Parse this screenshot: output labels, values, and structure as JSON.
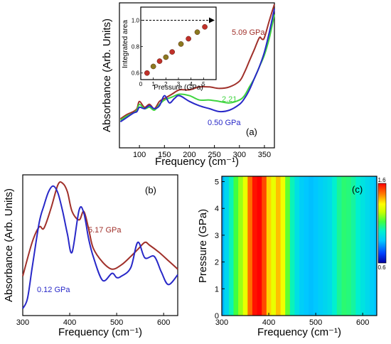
{
  "colors": {
    "red": "#a0302a",
    "green": "#3fd43f",
    "blue": "#2828c8",
    "black": "#000000"
  },
  "chart_data": [
    {
      "id": "a",
      "type": "line",
      "panel_label": "(a)",
      "xlabel": "Frequency (cm⁻¹)",
      "ylabel": "Absorbance (Arb. Units)",
      "xlim": [
        60,
        370
      ],
      "ylim": [
        0,
        1
      ],
      "x_ticks": [
        "100",
        "150",
        "200",
        "250",
        "300",
        "350"
      ],
      "series": [
        {
          "name": "5.09 GPa",
          "color": "#a0302a",
          "x": [
            62,
            75,
            88,
            95,
            100,
            110,
            120,
            130,
            140,
            150,
            165,
            180,
            200,
            220,
            240,
            260,
            280,
            300,
            310,
            320,
            330,
            340,
            345,
            350,
            360,
            370
          ],
          "y": [
            0.2,
            0.23,
            0.25,
            0.27,
            0.32,
            0.28,
            0.3,
            0.27,
            0.32,
            0.34,
            0.37,
            0.4,
            0.4,
            0.42,
            0.42,
            0.41,
            0.42,
            0.46,
            0.52,
            0.6,
            0.68,
            0.76,
            0.75,
            0.76,
            0.88,
            0.99
          ]
        },
        {
          "name": "2.21",
          "color": "#3fd43f",
          "x": [
            62,
            75,
            88,
            95,
            100,
            110,
            120,
            130,
            140,
            150,
            165,
            180,
            200,
            220,
            240,
            260,
            280,
            300,
            310,
            320,
            330,
            340,
            350,
            360,
            370
          ],
          "y": [
            0.19,
            0.22,
            0.24,
            0.26,
            0.3,
            0.27,
            0.28,
            0.26,
            0.3,
            0.33,
            0.35,
            0.37,
            0.36,
            0.33,
            0.33,
            0.32,
            0.31,
            0.33,
            0.36,
            0.42,
            0.48,
            0.56,
            0.64,
            0.76,
            0.92
          ]
        },
        {
          "name": "0.50 GPa",
          "color": "#2828c8",
          "x": [
            62,
            75,
            88,
            95,
            100,
            110,
            120,
            130,
            140,
            150,
            160,
            170,
            180,
            200,
            220,
            240,
            260,
            280,
            300,
            310,
            320,
            330,
            340,
            350,
            360,
            370
          ],
          "y": [
            0.18,
            0.21,
            0.24,
            0.25,
            0.28,
            0.27,
            0.29,
            0.27,
            0.29,
            0.36,
            0.31,
            0.34,
            0.36,
            0.32,
            0.29,
            0.27,
            0.25,
            0.26,
            0.3,
            0.34,
            0.4,
            0.48,
            0.56,
            0.66,
            0.8,
            0.96
          ]
        }
      ],
      "inset": {
        "type": "scatter",
        "xlabel": "Pressure (GPa)",
        "ylabel": "Integrated area",
        "xlim": [
          0,
          6
        ],
        "ylim": [
          0.55,
          1.1
        ],
        "x_ticks": [
          "0",
          "1",
          "2",
          "3",
          "4",
          "5"
        ],
        "y_ticks": [
          "0.6",
          "0.8",
          "1.0"
        ],
        "reference_line": 1.0,
        "x": [
          0.5,
          1.0,
          1.5,
          2.0,
          2.5,
          3.2,
          3.8,
          4.5,
          5.1
        ],
        "y": [
          0.6,
          0.65,
          0.69,
          0.72,
          0.76,
          0.82,
          0.86,
          0.91,
          0.95
        ]
      }
    },
    {
      "id": "b",
      "type": "line",
      "panel_label": "(b)",
      "xlabel": "Frequency (cm⁻¹)",
      "ylabel": "Absorbance (Arb. Units)",
      "xlim": [
        300,
        630
      ],
      "ylim": [
        0,
        1
      ],
      "x_ticks": [
        "300",
        "400",
        "500",
        "600"
      ],
      "series": [
        {
          "name": "5.17 GPa",
          "color": "#a0302a",
          "x": [
            300,
            320,
            335,
            345,
            360,
            375,
            385,
            395,
            405,
            420,
            430,
            440,
            450,
            470,
            490,
            510,
            530,
            545,
            560,
            570,
            590,
            610,
            630
          ],
          "y": [
            0.28,
            0.52,
            0.63,
            0.62,
            0.76,
            0.93,
            0.94,
            0.88,
            0.74,
            0.68,
            0.74,
            0.62,
            0.48,
            0.38,
            0.33,
            0.36,
            0.42,
            0.47,
            0.52,
            0.5,
            0.45,
            0.39,
            0.33
          ]
        },
        {
          "name": "0.12 GPa",
          "color": "#2828c8",
          "x": [
            300,
            310,
            320,
            335,
            345,
            355,
            365,
            375,
            385,
            395,
            405,
            420,
            430,
            440,
            450,
            470,
            490,
            500,
            510,
            530,
            545,
            560,
            580,
            595,
            610,
            630
          ],
          "y": [
            0.05,
            0.12,
            0.34,
            0.66,
            0.78,
            0.88,
            0.92,
            0.87,
            0.74,
            0.58,
            0.45,
            0.75,
            0.73,
            0.55,
            0.42,
            0.25,
            0.3,
            0.27,
            0.28,
            0.34,
            0.52,
            0.41,
            0.42,
            0.31,
            0.22,
            0.29
          ]
        }
      ]
    },
    {
      "id": "c",
      "type": "heatmap",
      "panel_label": "(c)",
      "xlabel": "Frequency (cm⁻¹)",
      "ylabel": "Pressure (GPa)",
      "xlim": [
        300,
        630
      ],
      "ylim": [
        0,
        5.2
      ],
      "x_ticks": [
        "300",
        "400",
        "500",
        "600"
      ],
      "y_ticks": [
        "0",
        "1",
        "2",
        "3",
        "4",
        "5"
      ],
      "colorbar": {
        "min": 0.6,
        "max": 1.6,
        "min_label": "0.6",
        "max_label": "1.6"
      },
      "x": [
        300,
        310,
        320,
        330,
        340,
        350,
        360,
        370,
        380,
        390,
        400,
        410,
        420,
        430,
        440,
        450,
        460,
        470,
        480,
        490,
        500,
        510,
        520,
        530,
        540,
        550,
        560,
        570,
        580,
        590,
        600,
        610,
        620,
        630
      ],
      "z": [
        0.85,
        0.92,
        1.02,
        1.12,
        1.2,
        1.3,
        1.48,
        1.58,
        1.6,
        1.52,
        1.38,
        1.3,
        1.4,
        1.32,
        1.15,
        1.02,
        0.95,
        0.9,
        0.88,
        0.87,
        0.88,
        0.9,
        0.92,
        0.94,
        1.0,
        1.05,
        1.08,
        1.07,
        1.04,
        1.0,
        0.96,
        0.93,
        0.9,
        0.87
      ]
    }
  ]
}
